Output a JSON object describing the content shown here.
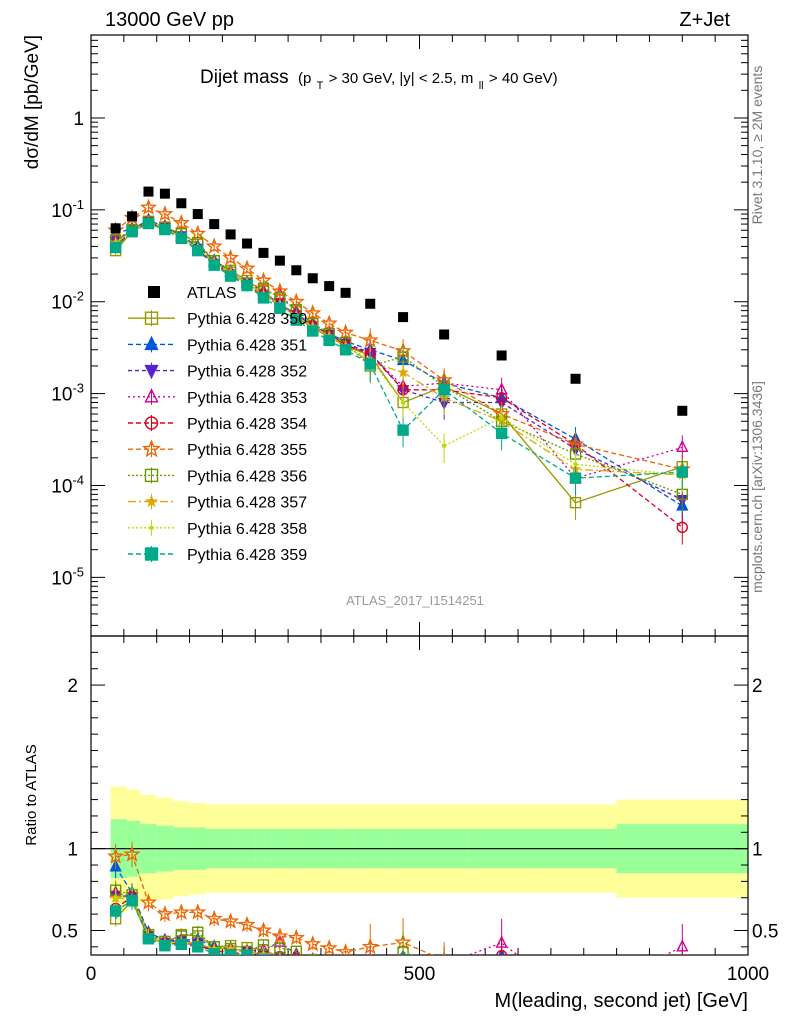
{
  "header": {
    "left": "13000 GeV pp",
    "right": "Z+Jet"
  },
  "side": {
    "rivet": "Rivet 3.1.10, ≥ 2M events",
    "mcplots": "mcplots.cern.ch [arXiv:1306.3436]"
  },
  "title": {
    "main": "Dijet mass",
    "cuts_prefix": "(p",
    "cuts_sub": "T",
    "cuts_middle": " > 30 GeV, |y| < 2.5, m",
    "cuts_sub2": "ll",
    "cuts_suffix": " > 40 GeV)"
  },
  "analysis_id": "ATLAS_2017_I1514251",
  "ylabel_main": "dσ/dM [pb/GeV]",
  "ylabel_ratio": "Ratio to ATLAS",
  "xlabel": "M(leading, second jet) [GeV]",
  "colors": {
    "data": "#000000",
    "band_inner": "#99ff99",
    "band_outer": "#ffff99"
  },
  "chart_data": {
    "type": "scatter",
    "x_scale": "linear",
    "y_scale": "log",
    "xlim": [
      0,
      1000
    ],
    "ylim": [
      2.3e-06,
      8
    ],
    "ratio_ylim": [
      0.35,
      2.3
    ],
    "x_ticks": [
      "0",
      "500",
      "1000"
    ],
    "y_ticks": [
      "10^-5",
      "10^-4",
      "10^-3",
      "10^-2",
      "10^-1",
      "1"
    ],
    "ratio_ticks": [
      "0.5",
      "1",
      "2"
    ],
    "data": {
      "name": "ATLAS",
      "x": [
        37.5,
        62.5,
        87.5,
        112.5,
        137.5,
        162.5,
        187.5,
        212.5,
        237.5,
        262.5,
        287.5,
        312.5,
        337.5,
        362.5,
        387.5,
        425,
        475,
        537.5,
        625,
        737.5,
        900
      ],
      "y": [
        0.063,
        0.085,
        0.158,
        0.15,
        0.118,
        0.09,
        0.07,
        0.054,
        0.043,
        0.034,
        0.028,
        0.022,
        0.018,
        0.0148,
        0.0125,
        0.0095,
        0.0068,
        0.0044,
        0.0026,
        0.00145,
        0.00065
      ],
      "band_x": [
        30,
        55,
        75,
        100,
        125,
        150,
        175,
        200,
        225,
        250,
        275,
        300,
        325,
        350,
        375,
        400,
        450,
        500,
        575,
        675,
        800,
        1000
      ],
      "band_inner": [
        0.18,
        0.17,
        0.15,
        0.14,
        0.13,
        0.13,
        0.12,
        0.12,
        0.12,
        0.12,
        0.12,
        0.12,
        0.12,
        0.12,
        0.12,
        0.12,
        0.12,
        0.12,
        0.12,
        0.12,
        0.15
      ],
      "band_outer": [
        0.38,
        0.36,
        0.33,
        0.31,
        0.29,
        0.28,
        0.27,
        0.27,
        0.27,
        0.27,
        0.27,
        0.27,
        0.27,
        0.27,
        0.27,
        0.27,
        0.27,
        0.27,
        0.27,
        0.27,
        0.3
      ]
    },
    "series": [
      {
        "name": "Pythia 6.428 350",
        "color": "#999900",
        "marker": "open-square",
        "dash": "",
        "x": [
          37.5,
          62.5,
          87.5,
          112.5,
          137.5,
          162.5,
          187.5,
          212.5,
          237.5,
          262.5,
          287.5,
          312.5,
          337.5,
          362.5,
          387.5,
          425,
          475,
          537.5,
          625,
          737.5,
          900
        ],
        "y": [
          0.036,
          0.058,
          0.072,
          0.063,
          0.056,
          0.042,
          0.028,
          0.022,
          0.017,
          0.013,
          0.0094,
          0.0068,
          0.0052,
          0.0041,
          0.0033,
          0.0026,
          0.0008,
          0.0012,
          0.0006,
          6.5e-05,
          0.00016
        ]
      },
      {
        "name": "Pythia 6.428 351",
        "color": "#0055dd",
        "marker": "up-triangle",
        "dash": "5,3",
        "x": [
          37.5,
          62.5,
          87.5,
          112.5,
          137.5,
          162.5,
          187.5,
          212.5,
          237.5,
          262.5,
          287.5,
          312.5,
          337.5,
          362.5,
          387.5,
          425,
          475,
          537.5,
          625,
          737.5,
          900
        ],
        "y": [
          0.056,
          0.062,
          0.077,
          0.066,
          0.052,
          0.04,
          0.028,
          0.021,
          0.016,
          0.012,
          0.009,
          0.0075,
          0.0055,
          0.0045,
          0.0037,
          0.003,
          0.0023,
          0.0013,
          0.0009,
          0.00032,
          6e-05
        ]
      },
      {
        "name": "Pythia 6.428 352",
        "color": "#5522cc",
        "marker": "down-triangle",
        "dash": "4,3",
        "x": [
          37.5,
          62.5,
          87.5,
          112.5,
          137.5,
          162.5,
          187.5,
          212.5,
          237.5,
          262.5,
          287.5,
          312.5,
          337.5,
          362.5,
          387.5,
          425,
          475,
          537.5,
          625,
          737.5,
          900
        ],
        "y": [
          0.045,
          0.06,
          0.074,
          0.064,
          0.052,
          0.038,
          0.026,
          0.02,
          0.016,
          0.012,
          0.0095,
          0.0072,
          0.0054,
          0.0044,
          0.0035,
          0.0028,
          0.0011,
          0.0008,
          0.0008,
          0.00025,
          7e-05
        ]
      },
      {
        "name": "Pythia 6.428 353",
        "color": "#cc0099",
        "marker": "open-up-triangle",
        "dash": "2,3",
        "x": [
          37.5,
          62.5,
          87.5,
          112.5,
          137.5,
          162.5,
          187.5,
          212.5,
          237.5,
          262.5,
          287.5,
          312.5,
          337.5,
          362.5,
          387.5,
          425,
          475,
          537.5,
          625,
          737.5,
          900
        ],
        "y": [
          0.046,
          0.06,
          0.076,
          0.065,
          0.051,
          0.037,
          0.027,
          0.021,
          0.016,
          0.013,
          0.012,
          0.0078,
          0.0058,
          0.0042,
          0.0034,
          0.0027,
          0.0012,
          0.0013,
          0.0011,
          0.00012,
          0.00026
        ]
      },
      {
        "name": "Pythia 6.428 354",
        "color": "#dd0022",
        "marker": "open-circle",
        "dash": "5,3",
        "x": [
          37.5,
          62.5,
          87.5,
          112.5,
          137.5,
          162.5,
          187.5,
          212.5,
          237.5,
          262.5,
          287.5,
          312.5,
          337.5,
          362.5,
          387.5,
          425,
          475,
          537.5,
          625,
          737.5,
          900
        ],
        "y": [
          0.04,
          0.06,
          0.074,
          0.062,
          0.05,
          0.037,
          0.026,
          0.02,
          0.015,
          0.012,
          0.0095,
          0.0072,
          0.0055,
          0.0043,
          0.0034,
          0.0027,
          0.0011,
          0.0011,
          0.0009,
          0.00028,
          3.5e-05
        ]
      },
      {
        "name": "Pythia 6.428 355",
        "color": "#ee6600",
        "marker": "open-star",
        "dash": "5,3",
        "x": [
          37.5,
          62.5,
          87.5,
          112.5,
          137.5,
          162.5,
          187.5,
          212.5,
          237.5,
          262.5,
          287.5,
          312.5,
          337.5,
          362.5,
          387.5,
          425,
          475,
          537.5,
          625,
          737.5,
          900
        ],
        "y": [
          0.06,
          0.082,
          0.106,
          0.09,
          0.072,
          0.055,
          0.04,
          0.03,
          0.023,
          0.017,
          0.013,
          0.01,
          0.0075,
          0.0058,
          0.0046,
          0.0038,
          0.0029,
          0.0014,
          0.0006,
          0.00028,
          0.00015
        ]
      },
      {
        "name": "Pythia 6.428 356",
        "color": "#669900",
        "marker": "open-square",
        "dash": "2,2",
        "x": [
          37.5,
          62.5,
          87.5,
          112.5,
          137.5,
          162.5,
          187.5,
          212.5,
          237.5,
          262.5,
          287.5,
          312.5,
          337.5,
          362.5,
          387.5,
          425,
          475,
          537.5,
          625,
          737.5,
          900
        ],
        "y": [
          0.047,
          0.061,
          0.075,
          0.065,
          0.055,
          0.044,
          0.028,
          0.021,
          0.016,
          0.014,
          0.011,
          0.0082,
          0.0058,
          0.0045,
          0.0036,
          0.002,
          0.0025,
          0.0012,
          0.0005,
          0.00022,
          8e-05
        ]
      },
      {
        "name": "Pythia 6.428 357",
        "color": "#ddaa00",
        "marker": "small-star",
        "dash": "8,3,2,3",
        "x": [
          37.5,
          62.5,
          87.5,
          112.5,
          137.5,
          162.5,
          187.5,
          212.5,
          237.5,
          262.5,
          287.5,
          312.5,
          337.5,
          362.5,
          387.5,
          425,
          475,
          537.5,
          625,
          737.5,
          900
        ],
        "y": [
          0.044,
          0.059,
          0.073,
          0.063,
          0.051,
          0.038,
          0.027,
          0.021,
          0.016,
          0.012,
          0.0093,
          0.007,
          0.0053,
          0.0042,
          0.0033,
          0.0022,
          0.0017,
          0.0009,
          0.0005,
          0.00015,
          0.00013
        ]
      },
      {
        "name": "Pythia 6.428 358",
        "color": "#bbdd00",
        "marker": "dot",
        "dash": "2,2",
        "x": [
          37.5,
          62.5,
          87.5,
          112.5,
          137.5,
          162.5,
          187.5,
          212.5,
          237.5,
          262.5,
          287.5,
          312.5,
          337.5,
          362.5,
          387.5,
          425,
          475,
          537.5,
          625,
          737.5,
          900
        ],
        "y": [
          0.044,
          0.06,
          0.074,
          0.064,
          0.05,
          0.038,
          0.027,
          0.02,
          0.016,
          0.012,
          0.0092,
          0.007,
          0.0054,
          0.0042,
          0.0032,
          0.0024,
          0.0008,
          0.00027,
          0.00055,
          0.00017,
          0.00013
        ]
      },
      {
        "name": "Pythia 6.428 359",
        "color": "#00aa88",
        "marker": "square",
        "dash": "5,3",
        "x": [
          37.5,
          62.5,
          87.5,
          112.5,
          137.5,
          162.5,
          187.5,
          212.5,
          237.5,
          262.5,
          287.5,
          312.5,
          337.5,
          362.5,
          387.5,
          425,
          475,
          537.5,
          625,
          737.5,
          900
        ],
        "y": [
          0.039,
          0.058,
          0.071,
          0.061,
          0.049,
          0.036,
          0.025,
          0.019,
          0.015,
          0.011,
          0.0085,
          0.0063,
          0.0048,
          0.0038,
          0.003,
          0.0021,
          0.0004,
          0.0011,
          0.00037,
          0.00012,
          0.00014
        ]
      }
    ]
  }
}
